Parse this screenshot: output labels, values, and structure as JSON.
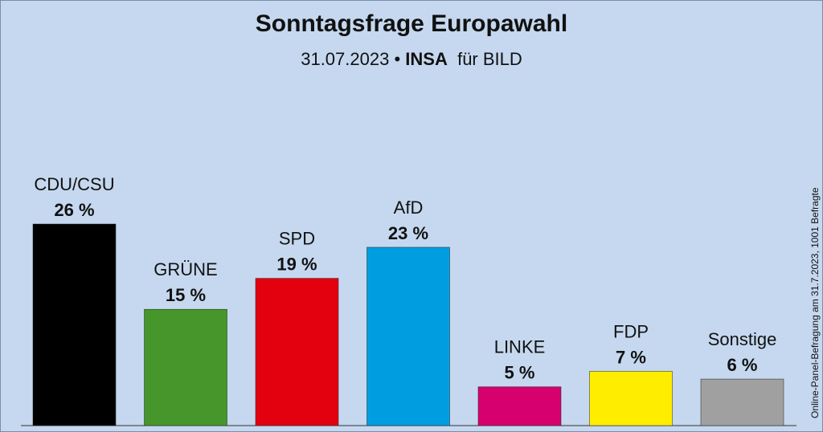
{
  "header": {
    "title": "Sonntagsfrage Europawahl",
    "date": "31.07.2023",
    "separator": "•",
    "institute": "INSA",
    "client": "für BILD"
  },
  "side_note": "Online-Panel-Befragung am 31.7.2023, 1001 Befragte",
  "chart_data": {
    "type": "bar",
    "title": "Sonntagsfrage Europawahl",
    "categories": [
      "CDU/CSU",
      "GRÜNE",
      "SPD",
      "AfD",
      "LINKE",
      "FDP",
      "Sonstige"
    ],
    "values": [
      26,
      15,
      19,
      23,
      5,
      7,
      6
    ],
    "value_labels": [
      "26 %",
      "15 %",
      "19 %",
      "23 %",
      "5 %",
      "7 %",
      "6 %"
    ],
    "colors": [
      "#000000",
      "#46962b",
      "#e3000f",
      "#009ee0",
      "#d6006f",
      "#ffed00",
      "#a0a0a0"
    ],
    "unit": "%",
    "ylim": [
      0,
      26
    ],
    "grid": false,
    "legend": "none"
  }
}
